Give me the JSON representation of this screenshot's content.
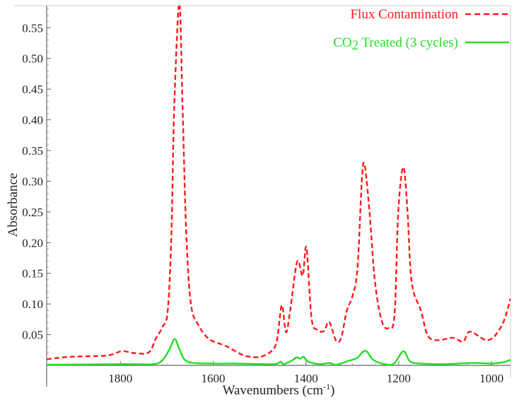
{
  "chart_data": {
    "type": "line",
    "xlabel": "Wavenumbers (cm-1)",
    "xlabel_main": "Wavenumbers (cm",
    "xlabel_sup": "-1",
    "xlabel_close": ")",
    "ylabel": "Absorbance",
    "xlim": [
      1959,
      959
    ],
    "ylim": [
      0,
      0.586
    ],
    "x_reversed": true,
    "grid": false,
    "legend_placement": "top-right",
    "xticks": [
      1800,
      1600,
      1400,
      1200,
      1000
    ],
    "yticks": [
      0.05,
      0.1,
      0.15,
      0.2,
      0.25,
      0.3,
      0.35,
      0.4,
      0.45,
      0.5,
      0.55
    ],
    "series": [
      {
        "name": "Flux Contamination",
        "color": "#ff1a1a",
        "style": "dashed",
        "x": [
          1959,
          1907,
          1830,
          1797,
          1770,
          1739,
          1724,
          1709,
          1698,
          1690,
          1684,
          1673,
          1666,
          1658,
          1648,
          1632,
          1609,
          1571,
          1533,
          1498,
          1472,
          1462,
          1452,
          1443,
          1434,
          1419,
          1407,
          1399,
          1388,
          1376,
          1361,
          1350,
          1335,
          1324,
          1312,
          1300,
          1289,
          1279,
          1273,
          1263,
          1251,
          1236,
          1221,
          1209,
          1201,
          1190,
          1181,
          1172,
          1152,
          1137,
          1114,
          1084,
          1061,
          1046,
          1007,
          977,
          959
        ],
        "y": [
          0.01,
          0.014,
          0.016,
          0.023,
          0.02,
          0.021,
          0.043,
          0.063,
          0.089,
          0.215,
          0.42,
          0.59,
          0.42,
          0.215,
          0.1,
          0.066,
          0.043,
          0.031,
          0.016,
          0.014,
          0.025,
          0.043,
          0.098,
          0.054,
          0.089,
          0.169,
          0.146,
          0.192,
          0.077,
          0.058,
          0.056,
          0.071,
          0.04,
          0.045,
          0.089,
          0.112,
          0.158,
          0.308,
          0.324,
          0.25,
          0.135,
          0.071,
          0.061,
          0.083,
          0.25,
          0.323,
          0.25,
          0.135,
          0.089,
          0.048,
          0.041,
          0.045,
          0.039,
          0.055,
          0.041,
          0.066,
          0.109
        ]
      },
      {
        "name": "CO2 Treated (3 cycles)",
        "legend_main": "CO",
        "legend_sub": "2",
        "legend_rest": " Treated (3 cycles)",
        "color": "#22e022",
        "style": "solid",
        "x": [
          1959,
          1800,
          1730,
          1710,
          1695,
          1683,
          1672,
          1655,
          1600,
          1550,
          1470,
          1455,
          1448,
          1430,
          1420,
          1412,
          1405,
          1395,
          1370,
          1350,
          1335,
          1310,
          1290,
          1272,
          1255,
          1230,
          1210,
          1190,
          1175,
          1150,
          1100,
          1040,
          1000,
          975,
          959
        ],
        "y": [
          0.001,
          0.002,
          0.002,
          0.008,
          0.025,
          0.043,
          0.025,
          0.006,
          0.003,
          0.003,
          0.002,
          0.006,
          0.002,
          0.008,
          0.013,
          0.011,
          0.014,
          0.006,
          0.002,
          0.004,
          0.001,
          0.007,
          0.012,
          0.024,
          0.009,
          0.002,
          0.003,
          0.023,
          0.006,
          0.003,
          0.002,
          0.004,
          0.003,
          0.005,
          0.009
        ]
      }
    ]
  }
}
